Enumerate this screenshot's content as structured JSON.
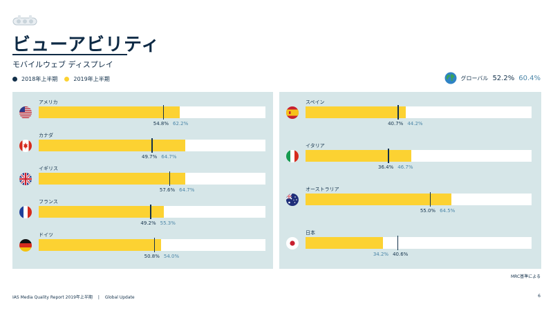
{
  "header": {
    "title": "ビューアビリティ",
    "subtitle": "モバイルウェブ ディスプレイ"
  },
  "legend": {
    "items": [
      {
        "label": "2018年上半期",
        "color": "#12304a"
      },
      {
        "label": "2019年上半期",
        "color": "#fcd232"
      }
    ]
  },
  "global": {
    "label": "グローバル",
    "value_2018": "52.2%",
    "value_2019": "60.4%",
    "icon": "globe-icon"
  },
  "colors": {
    "panel": "#d6e6e8",
    "bar_2019": "#fcd232",
    "marker_2018": "#12304a",
    "value_2019_text": "#4b86a8"
  },
  "chart_data": {
    "type": "bar",
    "orientation": "horizontal",
    "xlim": [
      0,
      100
    ],
    "series": [
      {
        "name": "2018年上半期",
        "style": "marker"
      },
      {
        "name": "2019年上半期",
        "style": "bar"
      }
    ],
    "panels": [
      {
        "countries": [
          {
            "name": "アメリカ",
            "flag": "us-flag-icon",
            "v2018": 54.8,
            "v2019": 62.2,
            "label_2018": "54.8%",
            "label_2019": "62.2%"
          },
          {
            "name": "カナダ",
            "flag": "canada-flag-icon",
            "v2018": 49.7,
            "v2019": 64.7,
            "label_2018": "49.7%",
            "label_2019": "64.7%"
          },
          {
            "name": "イギリス",
            "flag": "uk-flag-icon",
            "v2018": 57.6,
            "v2019": 64.7,
            "label_2018": "57.6%",
            "label_2019": "64.7%"
          },
          {
            "name": "フランス",
            "flag": "france-flag-icon",
            "v2018": 49.2,
            "v2019": 55.3,
            "label_2018": "49.2%",
            "label_2019": "55.3%"
          },
          {
            "name": "ドイツ",
            "flag": "germany-flag-icon",
            "v2018": 50.8,
            "v2019": 54.0,
            "label_2018": "50.8%",
            "label_2019": "54.0%"
          }
        ]
      },
      {
        "countries": [
          {
            "name": "スペイン",
            "flag": "spain-flag-icon",
            "v2018": 40.7,
            "v2019": 44.2,
            "label_2018": "40.7%",
            "label_2019": "44.2%"
          },
          {
            "name": "イタリア",
            "flag": "italy-flag-icon",
            "v2018": 36.4,
            "v2019": 46.7,
            "label_2018": "36.4%",
            "label_2019": "46.7%"
          },
          {
            "name": "オーストラリア",
            "flag": "australia-flag-icon",
            "v2018": 55.0,
            "v2019": 64.5,
            "label_2018": "55.0%",
            "label_2019": "64.5%"
          },
          {
            "name": "日本",
            "flag": "japan-flag-icon",
            "v2018": 40.6,
            "v2019": 34.2,
            "label_2018": "40.6%",
            "label_2019": "34.2%"
          }
        ]
      }
    ]
  },
  "note": "MRC基準による",
  "footer": {
    "report": "IAS Media Quality Report 2019年上半期",
    "separator": "|",
    "section": "Global Update",
    "page": "6"
  }
}
